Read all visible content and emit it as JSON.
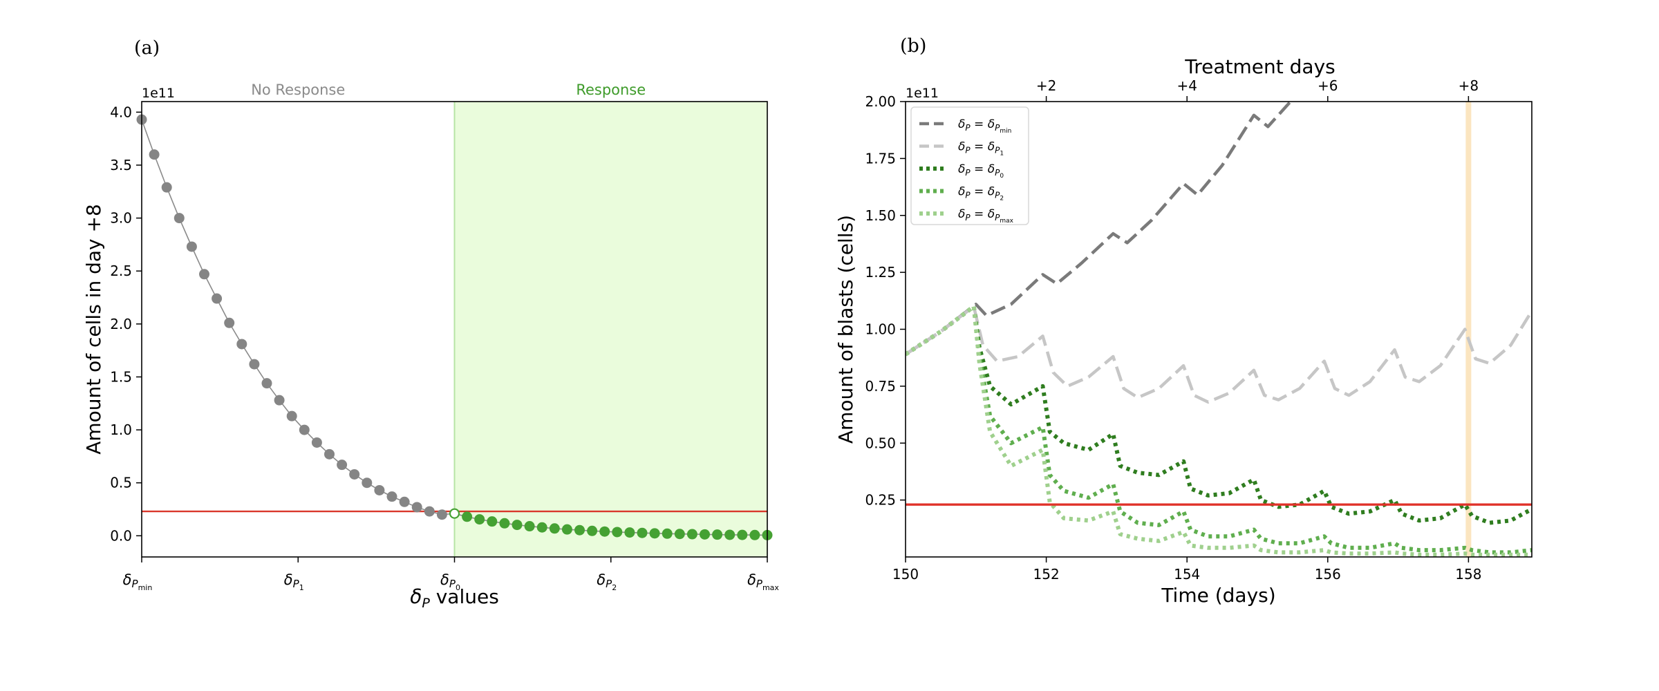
{
  "figure": {
    "panel_a_label": "(a)",
    "panel_b_label": "(b)"
  },
  "chart_data": [
    {
      "type": "scatter",
      "panel": "a",
      "title": "",
      "xlabel": "δP values",
      "xlabel_main": "δ",
      "xlabel_sub": "P",
      "xlabel_rest": " values",
      "ylabel": "Amount of cells in day +8",
      "offset_text": "1e11",
      "ylim": [
        -0.2,
        4.1
      ],
      "yticks": [
        0.0,
        0.5,
        1.0,
        1.5,
        2.0,
        2.5,
        3.0,
        3.5,
        4.0
      ],
      "ytick_labels": [
        "0.0",
        "0.5",
        "1.0",
        "1.5",
        "2.0",
        "2.5",
        "3.0",
        "3.5",
        "4.0"
      ],
      "xlim": [
        0,
        1
      ],
      "xtick_positions": [
        0,
        0.25,
        0.5,
        0.75,
        1.0
      ],
      "xtick_labels": [
        {
          "main": "δ",
          "sub": "P",
          "subsub": "min"
        },
        {
          "main": "δ",
          "sub": "P",
          "subsub": "1"
        },
        {
          "main": "δ",
          "sub": "P",
          "subsub": "0"
        },
        {
          "main": "δ",
          "sub": "P",
          "subsub": "2"
        },
        {
          "main": "δ",
          "sub": "P",
          "subsub": "max"
        }
      ],
      "regions": [
        {
          "label": "No Response",
          "x_range": [
            0,
            0.5
          ],
          "color": "#ffffff",
          "label_color": "#8a8a8a"
        },
        {
          "label": "Response",
          "x_range": [
            0.5,
            1.0
          ],
          "color": "#eafcdc",
          "label_color": "#3e9b2a"
        }
      ],
      "threshold": {
        "y": 0.23,
        "color": "#d9362a"
      },
      "series": [
        {
          "name": "No Response",
          "color": "#858585",
          "x": [
            0.0,
            0.02,
            0.04,
            0.06,
            0.08,
            0.1,
            0.12,
            0.14,
            0.16,
            0.18,
            0.2,
            0.22,
            0.24,
            0.26,
            0.28,
            0.3,
            0.32,
            0.34,
            0.36,
            0.38,
            0.4,
            0.42,
            0.44,
            0.46,
            0.48
          ],
          "y": [
            3.93,
            3.6,
            3.29,
            3.0,
            2.73,
            2.47,
            2.24,
            2.01,
            1.81,
            1.62,
            1.44,
            1.28,
            1.13,
            1.0,
            0.88,
            0.77,
            0.67,
            0.58,
            0.5,
            0.43,
            0.37,
            0.32,
            0.27,
            0.23,
            0.2
          ]
        },
        {
          "name": "Response",
          "color": "#45a133",
          "x": [
            0.52,
            0.54,
            0.56,
            0.58,
            0.6,
            0.62,
            0.64,
            0.66,
            0.68,
            0.7,
            0.72,
            0.74,
            0.76,
            0.78,
            0.8,
            0.82,
            0.84,
            0.86,
            0.88,
            0.9,
            0.92,
            0.94,
            0.96,
            0.98,
            1.0
          ],
          "y": [
            0.18,
            0.155,
            0.135,
            0.118,
            0.103,
            0.09,
            0.079,
            0.069,
            0.06,
            0.053,
            0.046,
            0.04,
            0.035,
            0.031,
            0.027,
            0.023,
            0.02,
            0.017,
            0.015,
            0.013,
            0.011,
            0.009,
            0.008,
            0.007,
            0.006
          ]
        }
      ],
      "threshold_point": {
        "x": 0.5,
        "y": 0.21
      }
    },
    {
      "type": "line",
      "panel": "b",
      "title": "Treatment days",
      "xlabel": "Time (days)",
      "ylabel": "Amount of blasts (cells)",
      "offset_text": "1e11",
      "xlim": [
        150,
        158.9
      ],
      "ylim": [
        0.0,
        2.0
      ],
      "xticks": [
        150,
        152,
        154,
        156,
        158
      ],
      "xtick_labels": [
        "150",
        "152",
        "154",
        "156",
        "158"
      ],
      "yticks": [
        0.25,
        0.5,
        0.75,
        1.0,
        1.25,
        1.5,
        1.75,
        2.0
      ],
      "ytick_labels": [
        "0.25",
        "0.50",
        "0.75",
        "1.00",
        "1.25",
        "1.50",
        "1.75",
        "2.00"
      ],
      "top_ticks": [
        152,
        154,
        156,
        158
      ],
      "top_tick_labels": [
        "+2",
        "+4",
        "+6",
        "+8"
      ],
      "highlight_day": 158,
      "highlight_color": "#fbe5c0",
      "threshold": {
        "y": 0.23,
        "color": "#e0322a"
      },
      "legend_position": "top-left",
      "series": [
        {
          "name": "δP = δPmin",
          "label_sub": "min",
          "style": "dashed",
          "color": "#7a7a7a",
          "x": [
            150,
            150.5,
            151,
            151.15,
            151.5,
            151.95,
            152.15,
            152.5,
            152.95,
            153.15,
            153.5,
            153.95,
            154.15,
            154.5,
            154.95,
            155.15,
            155.5
          ],
          "y": [
            0.89,
            0.99,
            1.11,
            1.06,
            1.11,
            1.24,
            1.2,
            1.29,
            1.42,
            1.38,
            1.48,
            1.64,
            1.59,
            1.72,
            1.94,
            1.89,
            2.01
          ]
        },
        {
          "name": "δP = δP1",
          "label_sub": "1",
          "style": "dashed",
          "color": "#c6c6c6",
          "x": [
            150,
            150.5,
            150.97,
            151.1,
            151.3,
            151.6,
            151.95,
            152.1,
            152.3,
            152.6,
            152.95,
            153.1,
            153.3,
            153.6,
            153.95,
            154.1,
            154.3,
            154.6,
            154.95,
            155.1,
            155.3,
            155.6,
            155.95,
            156.1,
            156.3,
            156.6,
            156.95,
            157.1,
            157.3,
            157.6,
            157.95,
            158.1,
            158.3,
            158.6,
            158.9
          ],
          "y": [
            0.89,
            0.99,
            1.1,
            0.93,
            0.86,
            0.88,
            0.97,
            0.81,
            0.75,
            0.79,
            0.88,
            0.74,
            0.7,
            0.74,
            0.84,
            0.71,
            0.68,
            0.72,
            0.82,
            0.71,
            0.69,
            0.74,
            0.86,
            0.74,
            0.71,
            0.77,
            0.91,
            0.79,
            0.77,
            0.84,
            1.0,
            0.87,
            0.85,
            0.93,
            1.08
          ]
        },
        {
          "name": "δP = δP0",
          "label_sub": "0",
          "style": "dotted",
          "color": "#2f7d1f",
          "x": [
            150,
            150.5,
            150.97,
            151.05,
            151.2,
            151.5,
            151.95,
            152.05,
            152.25,
            152.6,
            152.95,
            153.05,
            153.3,
            153.6,
            153.95,
            154.05,
            154.3,
            154.6,
            154.95,
            155.05,
            155.3,
            155.6,
            155.95,
            156.05,
            156.3,
            156.6,
            156.95,
            157.05,
            157.3,
            157.6,
            157.95,
            158.05,
            158.3,
            158.6,
            158.9
          ],
          "y": [
            0.89,
            0.99,
            1.1,
            0.92,
            0.75,
            0.67,
            0.75,
            0.55,
            0.5,
            0.47,
            0.54,
            0.4,
            0.37,
            0.36,
            0.42,
            0.3,
            0.27,
            0.28,
            0.34,
            0.25,
            0.22,
            0.23,
            0.29,
            0.22,
            0.19,
            0.2,
            0.25,
            0.19,
            0.16,
            0.17,
            0.23,
            0.18,
            0.15,
            0.16,
            0.21
          ]
        },
        {
          "name": "δP = δP2",
          "label_sub": "2",
          "style": "dotted",
          "color": "#5fae4e",
          "x": [
            150,
            150.5,
            150.97,
            151.05,
            151.2,
            151.5,
            151.95,
            152.05,
            152.25,
            152.6,
            152.95,
            153.05,
            153.3,
            153.6,
            153.95,
            154.05,
            154.3,
            154.6,
            154.95,
            155.05,
            155.3,
            155.6,
            155.95,
            156.05,
            156.3,
            156.6,
            156.95,
            157.05,
            157.3,
            157.6,
            157.95,
            158.05,
            158.3,
            158.6,
            158.9
          ],
          "y": [
            0.89,
            0.99,
            1.1,
            0.88,
            0.62,
            0.5,
            0.57,
            0.36,
            0.29,
            0.26,
            0.32,
            0.2,
            0.15,
            0.14,
            0.2,
            0.12,
            0.09,
            0.09,
            0.12,
            0.08,
            0.06,
            0.06,
            0.09,
            0.06,
            0.04,
            0.04,
            0.06,
            0.04,
            0.03,
            0.03,
            0.04,
            0.03,
            0.02,
            0.02,
            0.03
          ]
        },
        {
          "name": "δP = δPmax",
          "label_sub": "max",
          "style": "dotted",
          "color": "#9fd08d",
          "x": [
            150,
            150.5,
            150.97,
            151.05,
            151.2,
            151.5,
            151.95,
            152.05,
            152.25,
            152.6,
            152.95,
            153.05,
            153.3,
            153.6,
            153.95,
            154.05,
            154.3,
            154.6,
            154.95,
            155.05,
            155.3,
            155.6,
            155.95,
            156.05,
            156.3,
            156.6,
            156.95,
            157.05,
            157.3,
            157.6,
            157.95,
            158.05,
            158.3,
            158.6,
            158.9
          ],
          "y": [
            0.89,
            0.99,
            1.1,
            0.85,
            0.55,
            0.4,
            0.47,
            0.24,
            0.17,
            0.16,
            0.2,
            0.1,
            0.08,
            0.07,
            0.11,
            0.05,
            0.04,
            0.04,
            0.05,
            0.03,
            0.02,
            0.02,
            0.03,
            0.02,
            0.015,
            0.015,
            0.02,
            0.015,
            0.01,
            0.01,
            0.015,
            0.01,
            0.01,
            0.01,
            0.01
          ]
        }
      ]
    }
  ]
}
